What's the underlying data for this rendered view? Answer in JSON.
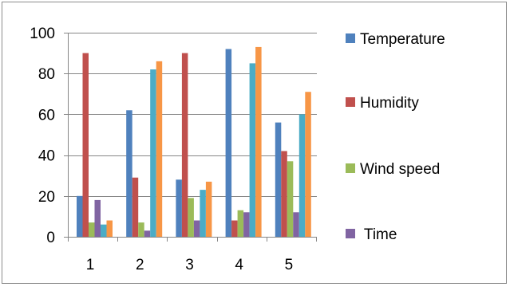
{
  "chart_data": {
    "type": "bar",
    "categories": [
      "1",
      "2",
      "3",
      "4",
      "5"
    ],
    "ylim": [
      0,
      100
    ],
    "yticks": [
      "0",
      "20",
      "40",
      "60",
      "80",
      "100"
    ],
    "grid": true,
    "legend_position": "right",
    "series": [
      {
        "name": "Temperature",
        "color": "#4F81BD",
        "values": [
          20,
          62,
          28,
          92,
          56
        ]
      },
      {
        "name": "Humidity",
        "color": "#C0504D",
        "values": [
          90,
          29,
          90,
          8,
          42
        ]
      },
      {
        "name": "Wind speed",
        "color": "#9BBB59",
        "values": [
          7,
          7,
          19,
          13,
          37
        ]
      },
      {
        "name": "Time",
        "color": "#8064A2",
        "values": [
          18,
          3,
          8,
          12,
          12
        ]
      },
      {
        "name": "",
        "color": "#4BACC6",
        "values": [
          6,
          82,
          23,
          85,
          60
        ]
      },
      {
        "name": "",
        "color": "#F79646",
        "values": [
          8,
          86,
          27,
          93,
          71
        ]
      }
    ]
  },
  "legend_labels": [
    "Temperature",
    "Humidity",
    "Wind speed",
    " Time"
  ]
}
